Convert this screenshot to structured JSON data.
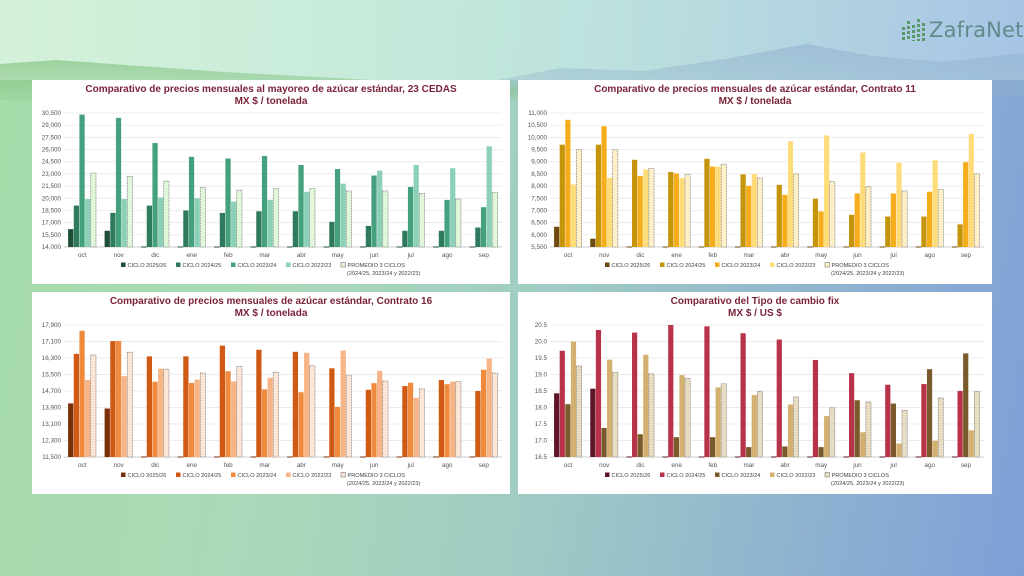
{
  "brand": {
    "name": "ZafraNet",
    "icon": "bar-chart-logo-icon"
  },
  "charts_meta": {
    "legend_labels": [
      "CICLO 2025/26",
      "CICLO 2024/25",
      "CICLO 2023/24",
      "CICLO 2022/23",
      "PROMEDIO 3 CICLOS"
    ],
    "legend_note": "(2024/25, 2023/24 y 2022/23)"
  },
  "chart_data": [
    {
      "id": "cedas",
      "type": "bar",
      "title": "Comparativo de precios mensuales al mayoreo de azúcar estándar, 23 CEDAS",
      "subtitle": "MX $ / tonelada",
      "xlabel": "",
      "ylabel": "",
      "ylim": [
        14000,
        30500
      ],
      "yticks": [
        14000,
        15500,
        17000,
        18500,
        20000,
        21500,
        23000,
        24500,
        26000,
        27500,
        29000,
        30500
      ],
      "grid": true,
      "legend": "bottom",
      "categories": [
        "oct",
        "nov",
        "dic",
        "ene",
        "feb",
        "mar",
        "abr",
        "may",
        "jun",
        "jul",
        "ago",
        "sep"
      ],
      "colors": [
        "#1e4d38",
        "#2f7a5d",
        "#45a07e",
        "#8dd0b8",
        "#e0f7da"
      ],
      "series": [
        {
          "name": "CICLO 2025/26",
          "values": [
            16200,
            16000,
            null,
            null,
            null,
            null,
            null,
            null,
            null,
            null,
            null,
            null
          ]
        },
        {
          "name": "CICLO 2024/25",
          "values": [
            19100,
            18200,
            19100,
            18500,
            18200,
            18400,
            18400,
            17100,
            16600,
            16000,
            16000,
            16400
          ]
        },
        {
          "name": "CICLO 2023/24",
          "values": [
            30300,
            29900,
            26800,
            25100,
            24900,
            25200,
            24100,
            23600,
            22800,
            21400,
            19800,
            18900
          ]
        },
        {
          "name": "CICLO 2022/23",
          "values": [
            19900,
            19900,
            20100,
            20000,
            19600,
            19800,
            20800,
            21800,
            23400,
            24100,
            23700,
            26400
          ]
        },
        {
          "name": "PROMEDIO 3 CICLOS",
          "values": [
            23100,
            22700,
            22100,
            21300,
            21000,
            21200,
            21200,
            20900,
            20900,
            20600,
            19900,
            20700
          ]
        }
      ]
    },
    {
      "id": "contrato11",
      "type": "bar",
      "title": "Comparativo de precios mensuales de azúcar estándar, Contrato 11",
      "subtitle": "MX $ / tonelada",
      "xlabel": "",
      "ylabel": "",
      "ylim": [
        5500,
        11000
      ],
      "yticks": [
        5500,
        6000,
        6500,
        7000,
        7500,
        8000,
        8500,
        9000,
        9500,
        10000,
        10500,
        11000
      ],
      "grid": true,
      "legend": "bottom",
      "categories": [
        "oct",
        "nov",
        "dic",
        "ene",
        "feb",
        "mar",
        "abr",
        "may",
        "jun",
        "jul",
        "ago",
        "sep"
      ],
      "colors": [
        "#6e4a0e",
        "#c4940a",
        "#f5ad1c",
        "#ffdc7a",
        "#fff0c8"
      ],
      "series": [
        {
          "name": "CICLO 2025/26",
          "values": [
            6330,
            5840,
            null,
            null,
            null,
            null,
            null,
            null,
            null,
            null,
            null,
            null
          ]
        },
        {
          "name": "CICLO 2024/25",
          "values": [
            9700,
            9700,
            9080,
            8580,
            9120,
            8480,
            8050,
            7480,
            6820,
            6750,
            6750,
            6430
          ]
        },
        {
          "name": "CICLO 2023/24",
          "values": [
            10720,
            10460,
            8410,
            8520,
            8800,
            8010,
            7640,
            6960,
            7700,
            7700,
            7770,
            8980
          ]
        },
        {
          "name": "CICLO 2022/23",
          "values": [
            8070,
            8340,
            8680,
            8330,
            8800,
            8500,
            9840,
            10080,
            9380,
            8960,
            9060,
            10140
          ]
        },
        {
          "name": "PROMEDIO 3 CICLOS",
          "values": [
            9490,
            9490,
            8720,
            8470,
            8900,
            8330,
            8500,
            8180,
            7970,
            7800,
            7860,
            8500
          ]
        }
      ]
    },
    {
      "id": "contrato16",
      "type": "bar",
      "title": "Comparativo de precios mensuales de azúcar estándar, Contrato 16",
      "subtitle": "MX $ / tonelada",
      "xlabel": "",
      "ylabel": "",
      "ylim": [
        11500,
        17900
      ],
      "yticks": [
        11500,
        12300,
        13100,
        13900,
        14700,
        15500,
        16300,
        17100,
        17900
      ],
      "grid": true,
      "legend": "bottom",
      "categories": [
        "oct",
        "nov",
        "dic",
        "ene",
        "feb",
        "mar",
        "abr",
        "may",
        "jun",
        "jul",
        "ago",
        "sep"
      ],
      "colors": [
        "#7a2e08",
        "#d05a14",
        "#f08a3c",
        "#f7b486",
        "#fde6d6"
      ],
      "series": [
        {
          "name": "CICLO 2025/26",
          "values": [
            14100,
            13850,
            null,
            null,
            null,
            null,
            null,
            null,
            null,
            null,
            null,
            null
          ]
        },
        {
          "name": "CICLO 2024/25",
          "values": [
            16500,
            17120,
            16380,
            16380,
            16900,
            16700,
            16600,
            15800,
            14760,
            14940,
            15230,
            14700
          ]
        },
        {
          "name": "CICLO 2023/24",
          "values": [
            17620,
            17130,
            15150,
            15090,
            15660,
            14780,
            14640,
            13930,
            15080,
            15100,
            15030,
            15730
          ]
        },
        {
          "name": "CICLO 2022/23",
          "values": [
            15230,
            15420,
            15780,
            15250,
            15160,
            15340,
            16550,
            16660,
            15680,
            14370,
            15150,
            16270
          ]
        },
        {
          "name": "PROMEDIO 3 CICLOS",
          "values": [
            16450,
            16580,
            15760,
            15570,
            15890,
            15610,
            15920,
            15470,
            15180,
            14800,
            15150,
            15570
          ]
        }
      ]
    },
    {
      "id": "tipo_cambio",
      "type": "bar",
      "title": "Comparativo del Tipo de cambio fix",
      "subtitle": "MX $ / US $",
      "xlabel": "",
      "ylabel": "",
      "ylim": [
        16.5,
        20.5
      ],
      "yticks": [
        16.5,
        17.0,
        17.5,
        18.0,
        18.5,
        19.0,
        19.5,
        20.0,
        20.5
      ],
      "grid": true,
      "legend": "bottom",
      "categories": [
        "oct",
        "nov",
        "dic",
        "ene",
        "feb",
        "mar",
        "abr",
        "may",
        "jun",
        "jul",
        "ago",
        "sep"
      ],
      "colors": [
        "#5e1527",
        "#b8324a",
        "#7a5a2a",
        "#d4b070",
        "#e8dcc2"
      ],
      "series": [
        {
          "name": "CICLO 2025/26",
          "values": [
            18.43,
            18.57,
            null,
            null,
            null,
            null,
            null,
            null,
            null,
            null,
            null,
            null
          ]
        },
        {
          "name": "CICLO 2024/25",
          "values": [
            19.72,
            20.35,
            20.27,
            20.5,
            20.46,
            20.25,
            20.06,
            19.44,
            19.04,
            18.69,
            18.71,
            18.5
          ]
        },
        {
          "name": "CICLO 2023/24",
          "values": [
            18.1,
            17.38,
            17.19,
            17.1,
            17.1,
            16.8,
            16.82,
            16.8,
            18.22,
            18.12,
            19.16,
            19.64
          ]
        },
        {
          "name": "CICLO 2022/23",
          "values": [
            20.0,
            19.45,
            19.6,
            18.98,
            18.61,
            18.38,
            18.09,
            17.74,
            17.25,
            16.91,
            16.99,
            17.31
          ]
        },
        {
          "name": "PROMEDIO 3 CICLOS",
          "values": [
            19.26,
            19.06,
            19.02,
            18.88,
            18.72,
            18.48,
            18.32,
            17.99,
            18.17,
            17.91,
            18.29,
            18.48
          ]
        }
      ]
    }
  ]
}
